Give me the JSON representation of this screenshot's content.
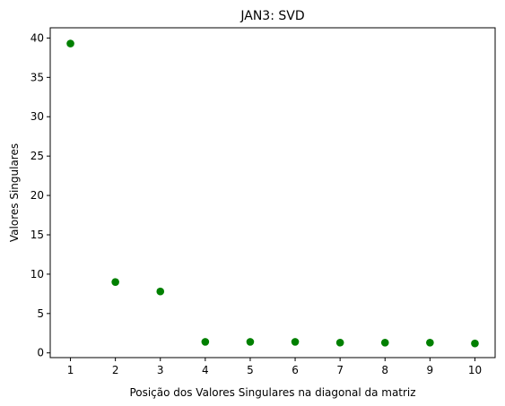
{
  "chart_data": {
    "type": "scatter",
    "title": "JAN3: SVD",
    "xlabel": "Posição dos Valores Singulares na diagonal da matriz",
    "ylabel": "Valores Singulares",
    "x": [
      1,
      2,
      3,
      4,
      5,
      6,
      7,
      8,
      9,
      10
    ],
    "y": [
      39.3,
      9.0,
      7.8,
      1.4,
      1.4,
      1.4,
      1.3,
      1.3,
      1.3,
      1.2
    ],
    "xlim": [
      0.55,
      10.45
    ],
    "ylim": [
      -0.6,
      41.3
    ],
    "xticks": [
      1,
      2,
      3,
      4,
      5,
      6,
      7,
      8,
      9,
      10
    ],
    "yticks": [
      0,
      5,
      10,
      15,
      20,
      25,
      30,
      35,
      40
    ],
    "grid": false,
    "marker_color": "#008000"
  }
}
